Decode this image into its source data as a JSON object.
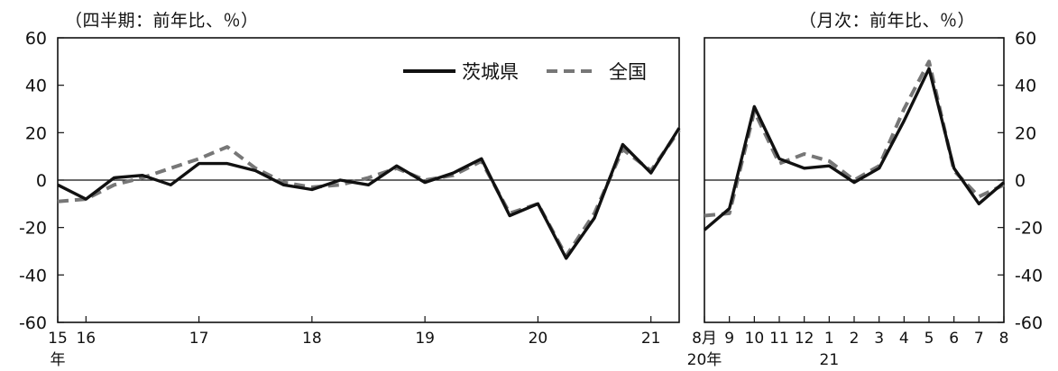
{
  "chart_data": [
    {
      "type": "line",
      "unit_label": "（四半期：前年比、％）",
      "ylim": [
        -60,
        60
      ],
      "yticks": [
        "60",
        "40",
        "20",
        "0",
        "-20",
        "-40",
        "-60"
      ],
      "x_ticks": [
        {
          "label": "15",
          "index": 0
        },
        {
          "label": "16",
          "index": 1
        },
        {
          "label": "17",
          "index": 5
        },
        {
          "label": "18",
          "index": 9
        },
        {
          "label": "19",
          "index": 13
        },
        {
          "label": "20",
          "index": 17
        },
        {
          "label": "21",
          "index": 21
        }
      ],
      "x_unit": "年",
      "legend": [
        "茨城県",
        "全国"
      ],
      "legend_position": "top-right",
      "series": [
        {
          "name": "茨城県",
          "style": "solid",
          "color": "#111111",
          "values": [
            -2,
            -8,
            1,
            2,
            -2,
            7,
            7,
            4,
            -2,
            -4,
            0,
            -2,
            6,
            -1,
            3,
            9,
            -15,
            -10,
            -33,
            -16,
            15,
            3,
            22
          ]
        },
        {
          "name": "全国",
          "style": "dashed",
          "color": "#777777",
          "values": [
            -9,
            -8,
            -2,
            1,
            5,
            9,
            14,
            5,
            -1,
            -3,
            -2,
            1,
            5,
            0,
            2,
            8,
            -14,
            -10,
            -32,
            -14,
            13,
            4,
            21
          ]
        }
      ]
    },
    {
      "type": "line",
      "unit_label": "（月次：前年比、％）",
      "ylim": [
        -60,
        60
      ],
      "yticks": [
        "60",
        "40",
        "20",
        "0",
        "-20",
        "-40",
        "-60"
      ],
      "categories": [
        "8月",
        "9",
        "10",
        "11",
        "12",
        "1",
        "2",
        "3",
        "4",
        "5",
        "6",
        "7",
        "8"
      ],
      "year_labels": [
        {
          "label": "20年",
          "index": 0
        },
        {
          "label": "21",
          "index": 5
        }
      ],
      "series": [
        {
          "name": "茨城県",
          "style": "solid",
          "color": "#111111",
          "values": [
            -21,
            -12,
            31,
            9,
            5,
            6,
            -1,
            5,
            25,
            47,
            5,
            -10,
            -1
          ]
        },
        {
          "name": "全国",
          "style": "dashed",
          "color": "#777777",
          "values": [
            -15,
            -14,
            29,
            7,
            11,
            8,
            0,
            6,
            30,
            50,
            4,
            -7,
            -2
          ]
        }
      ]
    }
  ]
}
